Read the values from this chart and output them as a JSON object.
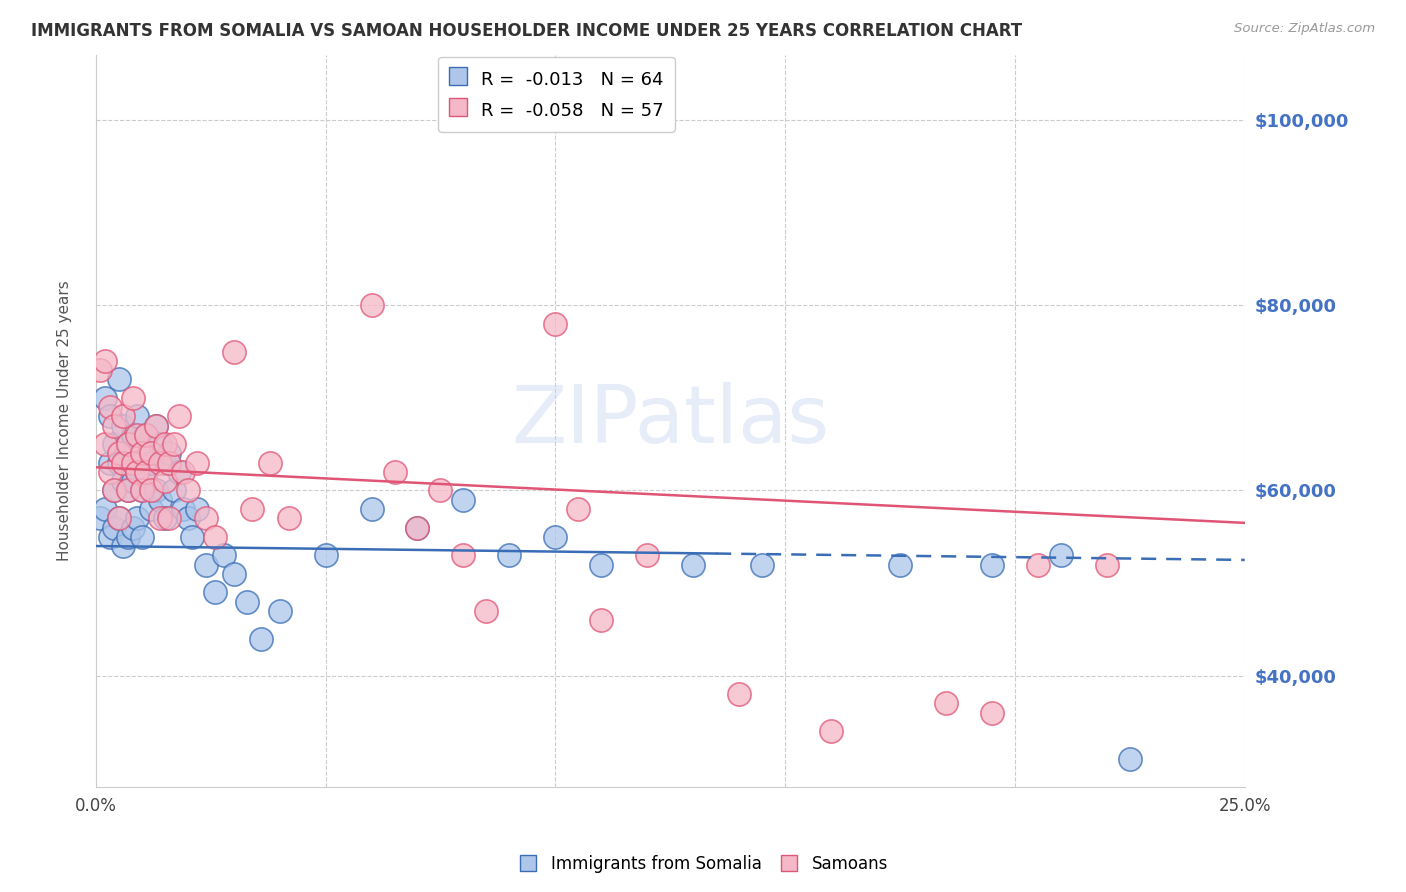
{
  "title": "IMMIGRANTS FROM SOMALIA VS SAMOAN HOUSEHOLDER INCOME UNDER 25 YEARS CORRELATION CHART",
  "source": "Source: ZipAtlas.com",
  "ylabel": "Householder Income Under 25 years",
  "legend_label1": "Immigrants from Somalia",
  "legend_label2": "Samoans",
  "R1": -0.013,
  "N1": 64,
  "R2": -0.058,
  "N2": 57,
  "color1_fill": "#adc6ea",
  "color1_edge": "#3a6db5",
  "color2_fill": "#f5b8c8",
  "color2_edge": "#e05575",
  "xmin": 0.0,
  "xmax": 0.25,
  "ymin": 28000,
  "ymax": 107000,
  "yticks": [
    40000,
    60000,
    80000,
    100000
  ],
  "xticks": [
    0.0,
    0.05,
    0.1,
    0.15,
    0.2,
    0.25
  ],
  "xlabels": [
    "0.0%",
    "",
    "",
    "",
    "",
    "25.0%"
  ],
  "ylabels": [
    "$40,000",
    "$60,000",
    "$80,000",
    "$100,000"
  ],
  "watermark": "ZIPatlas",
  "trend1_x0": 0.0,
  "trend1_y0": 54000,
  "trend1_x1": 0.25,
  "trend1_y1": 52500,
  "trend1_solid_end": 0.135,
  "trend2_x0": 0.0,
  "trend2_y0": 62500,
  "trend2_x1": 0.25,
  "trend2_y1": 56500,
  "scatter1_x": [
    0.001,
    0.002,
    0.002,
    0.003,
    0.003,
    0.003,
    0.004,
    0.004,
    0.004,
    0.005,
    0.005,
    0.005,
    0.006,
    0.006,
    0.006,
    0.007,
    0.007,
    0.007,
    0.008,
    0.008,
    0.008,
    0.009,
    0.009,
    0.009,
    0.01,
    0.01,
    0.01,
    0.011,
    0.011,
    0.012,
    0.012,
    0.013,
    0.013,
    0.014,
    0.014,
    0.015,
    0.015,
    0.016,
    0.017,
    0.018,
    0.019,
    0.02,
    0.021,
    0.022,
    0.024,
    0.026,
    0.028,
    0.03,
    0.033,
    0.036,
    0.04,
    0.05,
    0.06,
    0.07,
    0.08,
    0.09,
    0.1,
    0.11,
    0.13,
    0.145,
    0.175,
    0.195,
    0.21,
    0.225
  ],
  "scatter1_y": [
    57000,
    70000,
    58000,
    68000,
    63000,
    55000,
    65000,
    60000,
    56000,
    72000,
    63000,
    57000,
    67000,
    61000,
    54000,
    65000,
    60000,
    55000,
    66000,
    61000,
    56000,
    68000,
    62000,
    57000,
    64000,
    60000,
    55000,
    66000,
    62000,
    63000,
    58000,
    67000,
    60000,
    65000,
    59000,
    63000,
    57000,
    64000,
    60000,
    62000,
    58000,
    57000,
    55000,
    58000,
    52000,
    49000,
    53000,
    51000,
    48000,
    44000,
    47000,
    53000,
    58000,
    56000,
    59000,
    53000,
    55000,
    52000,
    52000,
    52000,
    52000,
    52000,
    53000,
    31000
  ],
  "scatter2_x": [
    0.001,
    0.002,
    0.002,
    0.003,
    0.003,
    0.004,
    0.004,
    0.005,
    0.005,
    0.006,
    0.006,
    0.007,
    0.007,
    0.008,
    0.008,
    0.009,
    0.009,
    0.01,
    0.01,
    0.011,
    0.011,
    0.012,
    0.012,
    0.013,
    0.014,
    0.014,
    0.015,
    0.015,
    0.016,
    0.016,
    0.017,
    0.018,
    0.019,
    0.02,
    0.022,
    0.024,
    0.026,
    0.03,
    0.034,
    0.038,
    0.042,
    0.06,
    0.065,
    0.07,
    0.075,
    0.08,
    0.085,
    0.1,
    0.105,
    0.11,
    0.12,
    0.14,
    0.16,
    0.185,
    0.195,
    0.205,
    0.22
  ],
  "scatter2_y": [
    73000,
    74000,
    65000,
    69000,
    62000,
    67000,
    60000,
    64000,
    57000,
    68000,
    63000,
    65000,
    60000,
    70000,
    63000,
    66000,
    62000,
    64000,
    60000,
    66000,
    62000,
    64000,
    60000,
    67000,
    63000,
    57000,
    65000,
    61000,
    63000,
    57000,
    65000,
    68000,
    62000,
    60000,
    63000,
    57000,
    55000,
    75000,
    58000,
    63000,
    57000,
    80000,
    62000,
    56000,
    60000,
    53000,
    47000,
    78000,
    58000,
    46000,
    53000,
    38000,
    34000,
    37000,
    36000,
    52000,
    52000
  ]
}
